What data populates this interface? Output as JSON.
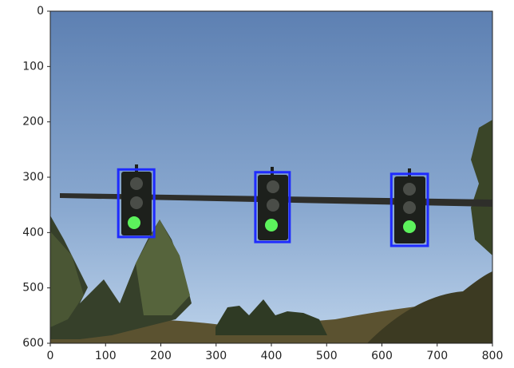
{
  "chart_data": {
    "type": "image",
    "xlim": [
      0,
      800
    ],
    "ylim": [
      600,
      0
    ],
    "xticks": [
      0,
      100,
      200,
      300,
      400,
      500,
      600,
      700,
      800
    ],
    "yticks": [
      0,
      100,
      200,
      300,
      400,
      500,
      600
    ],
    "box_color": "#1f2bff",
    "boxes": [
      {
        "xmin": 123,
        "ymin": 286,
        "xmax": 188,
        "ymax": 408
      },
      {
        "xmin": 371,
        "ymin": 291,
        "xmax": 433,
        "ymax": 417
      },
      {
        "xmin": 617,
        "ymin": 294,
        "xmax": 683,
        "ymax": 424
      }
    ]
  }
}
